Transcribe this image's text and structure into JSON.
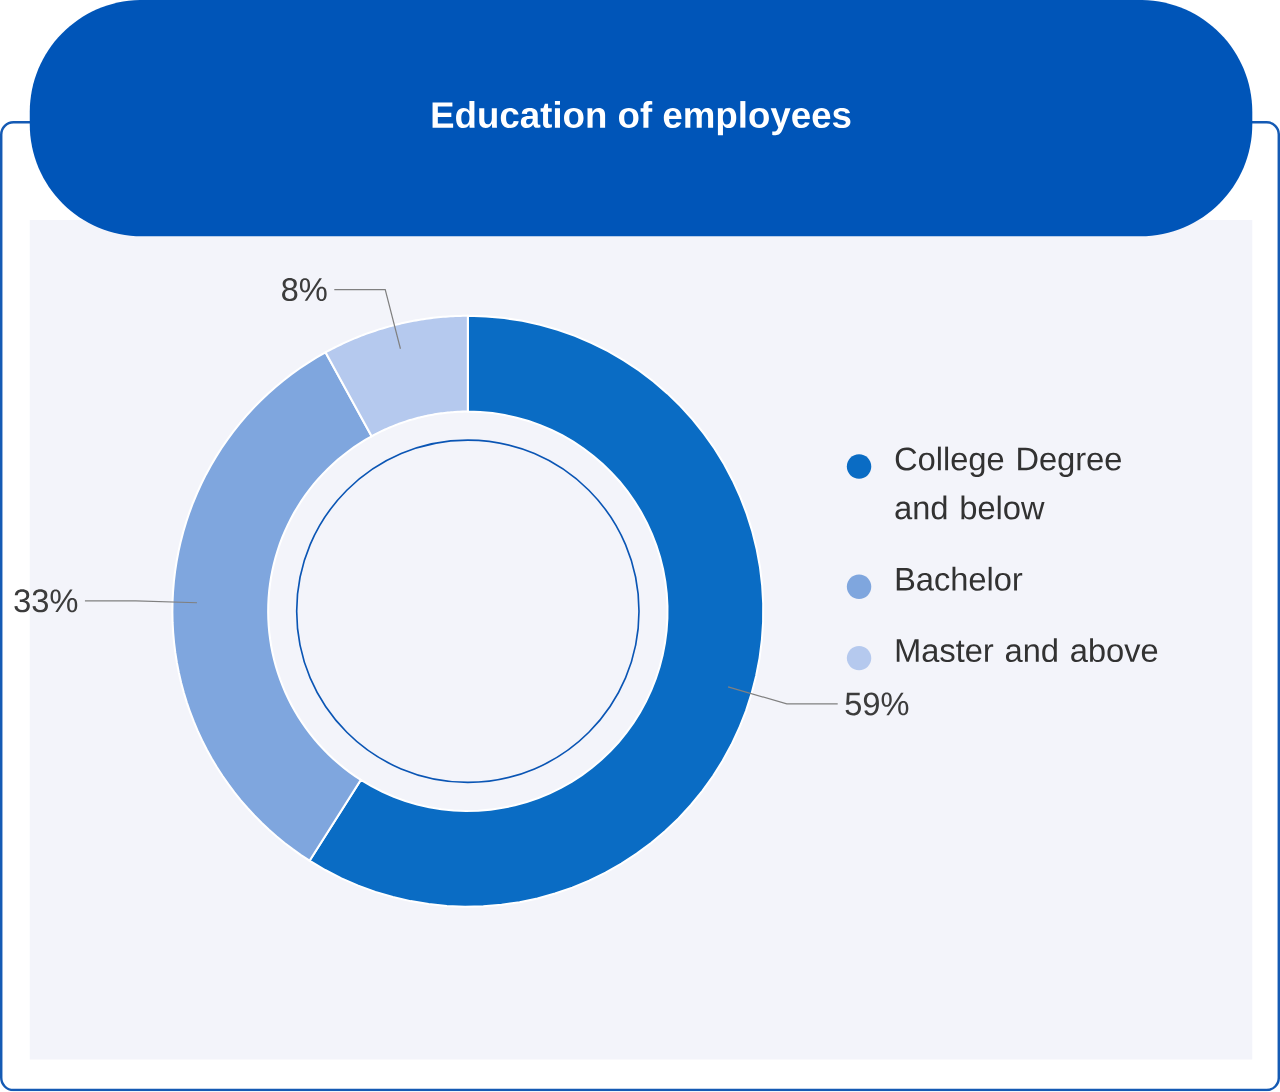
{
  "chart_data": {
    "type": "donut",
    "title": "Education of employees",
    "categories": [
      "College Degree and below",
      "Bachelor",
      "Master and above"
    ],
    "values": [
      59,
      33,
      8
    ],
    "value_labels": [
      "59%",
      "33%",
      "8%"
    ],
    "colors": [
      "#0a6cc4",
      "#7fa6de",
      "#b5c9ee"
    ],
    "legend": "right"
  }
}
